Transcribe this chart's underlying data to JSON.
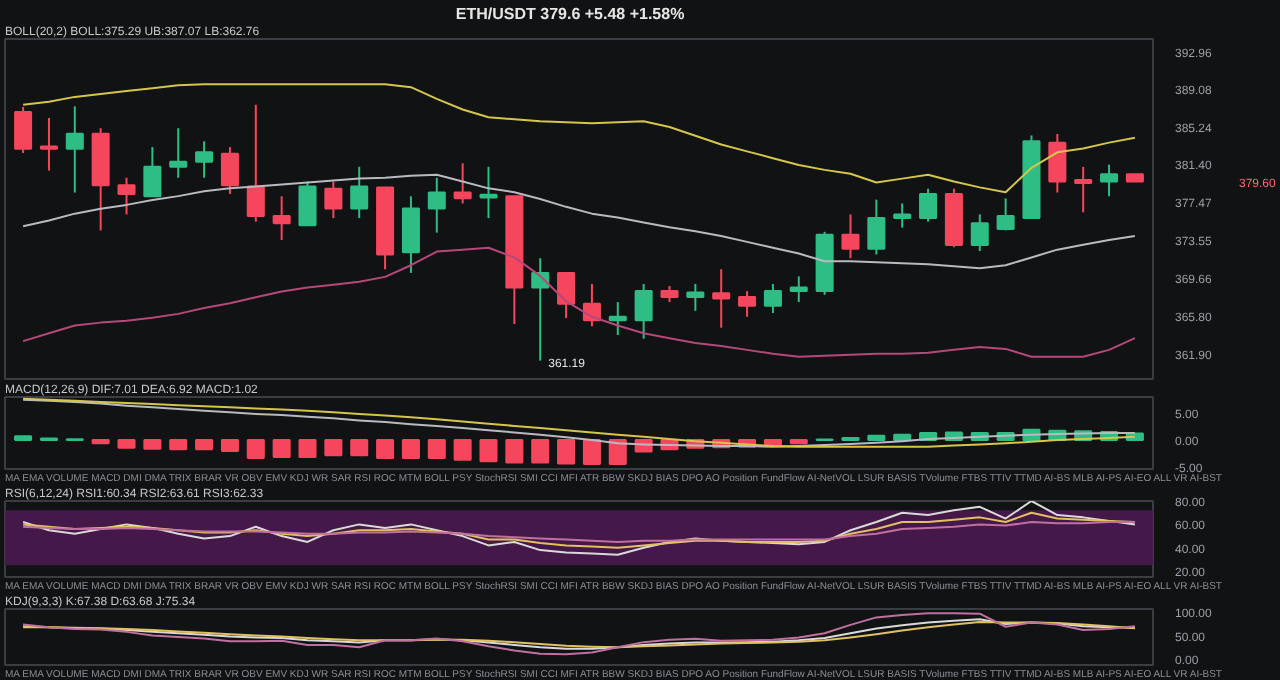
{
  "chart_data": [
    {
      "type": "candlestick",
      "title": "ETH/USDT",
      "subtitle": "BOLL(20,2) BOLL:375.29 UB:387.07 LB:362.76",
      "categories": [
        null,
        null,
        null,
        null,
        null,
        null,
        null,
        null,
        null,
        null,
        null,
        null,
        null,
        null,
        null,
        null,
        null,
        null,
        null,
        null,
        null,
        null,
        null,
        null,
        null,
        null,
        null,
        null,
        null,
        null,
        null,
        null,
        null,
        null,
        null,
        null,
        null,
        null,
        null,
        null,
        null,
        null,
        null,
        null
      ],
      "ohlc": [
        [
          386.74,
          387.26,
          382.53,
          382.98
        ],
        [
          383.2,
          386.14,
          380.73,
          382.98
        ],
        [
          382.98,
          387.33,
          378.47,
          384.5
        ],
        [
          384.5,
          385.08,
          374.58,
          379.22
        ],
        [
          379.22,
          379.99,
          376.22,
          378.32
        ],
        [
          378.09,
          383.14,
          378.09,
          381.11
        ],
        [
          381.11,
          385.08,
          379.99,
          381.63
        ],
        [
          381.63,
          383.73,
          379.99,
          382.6
        ],
        [
          382.46,
          383.14,
          378.32,
          379.22
        ],
        [
          379.08,
          387.49,
          375.48,
          376.07
        ],
        [
          376.07,
          378.09,
          373.59,
          375.32
        ],
        [
          375.1,
          379.6,
          375.1,
          379.08
        ],
        [
          378.86,
          379.6,
          375.84,
          376.83
        ],
        [
          376.83,
          381.11,
          375.84,
          379.08
        ],
        [
          379.0,
          379.0,
          370.59,
          372.1
        ],
        [
          372.33,
          378.09,
          370.21,
          376.83
        ],
        [
          376.83,
          379.99,
          374.35,
          378.47
        ],
        [
          378.47,
          381.48,
          377.35,
          377.87
        ],
        [
          377.96,
          381.11,
          375.84,
          378.25
        ],
        [
          378.09,
          378.09,
          364.95,
          368.72
        ],
        [
          368.72,
          371.72,
          361.19,
          370.21
        ],
        [
          370.21,
          370.21,
          365.57,
          367.05
        ],
        [
          367.05,
          369.08,
          364.73,
          365.34
        ],
        [
          365.34,
          367.21,
          363.83,
          365.7
        ],
        [
          365.34,
          369.08,
          363.45,
          368.34
        ],
        [
          368.34,
          368.86,
          367.21,
          367.73
        ],
        [
          367.73,
          369.08,
          366.31,
          368.19
        ],
        [
          368.11,
          370.59,
          364.58,
          367.58
        ],
        [
          367.73,
          368.34,
          365.7,
          366.83
        ],
        [
          366.83,
          369.08,
          366.08,
          368.34
        ],
        [
          368.34,
          369.85,
          367.21,
          368.72
        ],
        [
          368.34,
          374.43,
          367.96,
          374.13
        ],
        [
          374.13,
          376.22,
          371.72,
          372.68
        ],
        [
          372.68,
          377.74,
          372.1,
          375.84
        ],
        [
          375.84,
          377.35,
          374.87,
          376.22
        ],
        [
          375.84,
          378.86,
          375.48,
          378.32
        ],
        [
          378.32,
          378.86,
          372.84,
          373.07
        ],
        [
          373.07,
          376.22,
          372.46,
          375.32
        ],
        [
          374.72,
          377.87,
          374.58,
          376.07
        ],
        [
          375.84,
          384.34,
          375.84,
          383.73
        ],
        [
          383.59,
          384.49,
          378.47,
          379.6
        ],
        [
          379.76,
          381.11,
          376.44,
          379.45
        ],
        [
          379.6,
          381.34,
          378.09,
          380.35
        ],
        [
          380.35,
          380.35,
          379.6,
          379.6
        ]
      ],
      "colors": [
        "#f6465d",
        "#f6465d",
        "#2ebd85",
        "#f6465d",
        "#f6465d",
        "#2ebd85",
        "#2ebd85",
        "#2ebd85",
        "#f6465d",
        "#f6465d",
        "#f6465d",
        "#2ebd85",
        "#f6465d",
        "#2ebd85",
        "#f6465d",
        "#2ebd85",
        "#2ebd85",
        "#f6465d",
        "#2ebd85",
        "#f6465d",
        "#2ebd85",
        "#f6465d",
        "#f6465d",
        "#2ebd85",
        "#2ebd85",
        "#f6465d",
        "#2ebd85",
        "#f6465d",
        "#f6465d",
        "#2ebd85",
        "#2ebd85",
        "#2ebd85",
        "#f6465d",
        "#2ebd85",
        "#2ebd85",
        "#2ebd85",
        "#f6465d",
        "#2ebd85",
        "#2ebd85",
        "#2ebd85",
        "#f6465d",
        "#f6465d",
        "#2ebd85",
        "#f6465d"
      ],
      "series": [
        {
          "type": "line",
          "color": "#d4c64a",
          "values": [
            387.5,
            387.8,
            388.3,
            388.6,
            388.9,
            389.2,
            389.5,
            389.6,
            389.6,
            389.6,
            389.6,
            389.6,
            389.6,
            389.6,
            389.6,
            389.3,
            388.1,
            387.0,
            386.2,
            386.0,
            385.8,
            385.7,
            385.6,
            385.7,
            385.8,
            385.2,
            384.3,
            383.4,
            382.7,
            382.0,
            381.3,
            380.8,
            380.4,
            379.5,
            379.9,
            380.3,
            379.6,
            379.0,
            378.5,
            381.0,
            382.6,
            383.0,
            383.6,
            384.1
          ]
        },
        {
          "type": "line",
          "color": "#b9b9c0",
          "values": [
            375.0,
            375.6,
            376.3,
            376.8,
            377.2,
            377.7,
            378.1,
            378.6,
            378.9,
            379.1,
            379.3,
            379.5,
            379.7,
            379.9,
            380.0,
            380.2,
            380.3,
            379.6,
            378.9,
            378.5,
            377.8,
            377.0,
            376.3,
            375.9,
            375.4,
            374.9,
            374.5,
            374.0,
            373.4,
            372.8,
            372.2,
            371.4,
            371.4,
            371.3,
            371.2,
            371.1,
            370.9,
            370.7,
            371.0,
            371.8,
            372.6,
            373.1,
            373.6,
            374.0
          ]
        },
        {
          "type": "line",
          "color": "#b5487a",
          "values": [
            363.2,
            364.0,
            364.8,
            365.1,
            365.3,
            365.6,
            366.0,
            366.6,
            367.1,
            367.7,
            368.3,
            368.7,
            369.0,
            369.3,
            369.8,
            371.0,
            372.4,
            372.6,
            372.8,
            371.8,
            369.9,
            367.3,
            365.7,
            364.8,
            364.0,
            363.5,
            363.0,
            362.7,
            362.3,
            361.9,
            361.6,
            361.7,
            361.8,
            361.9,
            361.9,
            362.0,
            362.3,
            362.6,
            362.4,
            361.6,
            361.6,
            361.6,
            362.3,
            363.5
          ]
        }
      ],
      "ylim": [
        359.1,
        394.25
      ],
      "yticks": [
        392.96,
        389.08,
        385.24,
        {
          "value": 381.4,
          "label": "381.40"
        },
        377.47,
        373.55,
        369.66,
        {
          "value": 365.8,
          "label": "365.80"
        },
        {
          "value": 361.9,
          "label": "361.90"
        }
      ],
      "tick_labels": "y",
      "annotations": [
        "379.6",
        "+5.48",
        "+1.58%",
        "361.19",
        "379.60"
      ]
    },
    {
      "type": "bar",
      "subtitle": "MACD(12,26,9) DIF:7.01 DEA:6.92 MACD:1.02",
      "categories": [
        null,
        null,
        null,
        null,
        null,
        null,
        null,
        null,
        null,
        null,
        null,
        null,
        null,
        null,
        null,
        null,
        null,
        null,
        null,
        null,
        null,
        null,
        null,
        null,
        null,
        null,
        null,
        null,
        null,
        null,
        null,
        null,
        null,
        null,
        null,
        null,
        null,
        null,
        null,
        null,
        null,
        null,
        null,
        null
      ],
      "series": [
        {
          "type": "bar",
          "colors": [
            "#2ebd85",
            "#2ebd85",
            "#2ebd85",
            "#f6465d",
            "#f6465d",
            "#f6465d",
            "#f6465d",
            "#f6465d",
            "#f6465d",
            "#f6465d",
            "#f6465d",
            "#f6465d",
            "#f6465d",
            "#f6465d",
            "#f6465d",
            "#f6465d",
            "#f6465d",
            "#f6465d",
            "#f6465d",
            "#f6465d",
            "#f6465d",
            "#f6465d",
            "#f6465d",
            "#f6465d",
            "#f6465d",
            "#f6465d",
            "#f6465d",
            "#f6465d",
            "#f6465d",
            "#f6465d",
            "#f6465d",
            "#2ebd85",
            "#2ebd85",
            "#2ebd85",
            "#2ebd85",
            "#2ebd85",
            "#2ebd85",
            "#2ebd85",
            "#2ebd85",
            "#2ebd85",
            "#2ebd85",
            "#2ebd85",
            "#2ebd85",
            "#2ebd85"
          ],
          "values": [
            0.7,
            0.3,
            0.15,
            -0.6,
            -1.4,
            -1.6,
            -1.7,
            -1.7,
            -2.0,
            -3.3,
            -3.1,
            -3.1,
            -2.8,
            -2.8,
            -3.3,
            -3.3,
            -3.3,
            -3.6,
            -3.9,
            -4.1,
            -4.1,
            -4.3,
            -4.4,
            -4.4,
            -2.1,
            -1.7,
            -1.4,
            -1.3,
            -1.2,
            -1.0,
            -0.6,
            0.1,
            0.4,
            0.8,
            1.0,
            1.3,
            1.4,
            1.3,
            1.3,
            1.9,
            1.7,
            1.6,
            1.5,
            1.2
          ]
        },
        {
          "type": "line",
          "color": "#b9b9c0",
          "values": [
            7.4,
            7.2,
            7.0,
            6.7,
            6.3,
            6.0,
            5.7,
            5.4,
            5.1,
            4.8,
            4.6,
            4.3,
            4.0,
            3.6,
            3.3,
            2.9,
            2.6,
            2.2,
            1.8,
            1.4,
            1.0,
            0.5,
            0.0,
            -0.6,
            -0.8,
            -0.9,
            -1.0,
            -1.1,
            -1.1,
            -1.2,
            -1.1,
            -0.9,
            -0.7,
            -0.5,
            -0.2,
            0.2,
            0.4,
            0.6,
            0.8,
            1.0,
            1.1,
            1.2,
            1.3,
            1.3
          ]
        },
        {
          "type": "line",
          "color": "#d4c64a",
          "values": [
            7.6,
            7.4,
            7.2,
            7.0,
            6.8,
            6.6,
            6.4,
            6.2,
            6.0,
            5.8,
            5.6,
            5.4,
            5.1,
            4.8,
            4.5,
            4.2,
            3.8,
            3.4,
            3.0,
            2.6,
            2.2,
            1.8,
            1.4,
            1.0,
            0.6,
            0.2,
            -0.2,
            -0.5,
            -0.8,
            -1.1,
            -1.2,
            -1.2,
            -1.2,
            -1.2,
            -1.2,
            -1.2,
            -1.0,
            -0.8,
            -0.6,
            -0.3,
            0.0,
            0.2,
            0.4,
            0.6
          ]
        }
      ],
      "ylim": [
        -5.3,
        7.9
      ],
      "yticks": [
        {
          "value": 5,
          "label": "5.00"
        },
        {
          "value": 0,
          "label": "0.00"
        },
        {
          "value": -5,
          "label": "-5.00"
        }
      ],
      "tick_labels": "y",
      "annotations": [
        "MA EMA VOLUME MACD DMI DMA TRIX BRAR VR OBV EMV KDJ WR SAR RSI ROC MTM BOLL PSY StochRSI SMI CCI MFI ATR BBW SKDJ BIAS DPO AO Position FundFlow AI-NetVOL LSUR BASIS TVolume FTBS TTIV TTMD AI-BS MLB AI-PS AI-EO ALL VR AI-BST"
      ]
    },
    {
      "type": "line",
      "subtitle": "RSI(6,12,24) RSI1:60.34 RSI2:63.61 RSI3:62.33",
      "categories": [
        null,
        null,
        null,
        null,
        null,
        null,
        null,
        null,
        null,
        null,
        null,
        null,
        null,
        null,
        null,
        null,
        null,
        null,
        null,
        null,
        null,
        null,
        null,
        null,
        null,
        null,
        null,
        null,
        null,
        null,
        null,
        null,
        null,
        null,
        null,
        null,
        null,
        null,
        null,
        null,
        null,
        null,
        null,
        null
      ],
      "series": [
        {
          "color": "#d9d9d9",
          "values": [
            62,
            55,
            52,
            56,
            60,
            57,
            52,
            48,
            50,
            58,
            50,
            45,
            55,
            60,
            57,
            60,
            55,
            50,
            42,
            45,
            38,
            36,
            35,
            34,
            40,
            45,
            48,
            46,
            45,
            44,
            43,
            45,
            55,
            62,
            70,
            68,
            72,
            75,
            65,
            80,
            68,
            66,
            63,
            60
          ]
        },
        {
          "color": "#e0c060",
          "values": [
            60,
            58,
            56,
            57,
            58,
            57,
            55,
            53,
            53,
            55,
            52,
            50,
            52,
            55,
            55,
            56,
            54,
            52,
            47,
            47,
            44,
            42,
            41,
            40,
            42,
            44,
            46,
            46,
            45,
            45,
            45,
            46,
            52,
            56,
            62,
            62,
            64,
            66,
            62,
            70,
            65,
            64,
            63,
            62
          ]
        },
        {
          "color": "#c070a0",
          "values": [
            58,
            57,
            56,
            56,
            57,
            56,
            55,
            54,
            54,
            54,
            53,
            52,
            52,
            53,
            53,
            54,
            53,
            52,
            50,
            49,
            48,
            47,
            46,
            45,
            46,
            46,
            47,
            47,
            47,
            47,
            47,
            47,
            50,
            52,
            56,
            57,
            58,
            60,
            59,
            62,
            61,
            61,
            62,
            62
          ]
        }
      ],
      "bands": [
        {
          "axis": "y",
          "from": 25,
          "to": 72,
          "color": "#4a1a4f"
        }
      ],
      "ylim": [
        15,
        80
      ],
      "yticks": [
        {
          "value": 20,
          "label": "20.00"
        },
        {
          "value": 40,
          "label": "40.00"
        },
        {
          "value": 60,
          "label": "60.00"
        },
        {
          "value": 80,
          "label": "80.00"
        }
      ],
      "tick_labels": "y",
      "annotations": [
        "MA EMA VOLUME MACD DMI DMA TRIX BRAR VR OBV EMV KDJ WR SAR RSI ROC MTM BOLL PSY StochRSI SMI CCI MFI ATR BBW SKDJ BIAS DPO AO Position FundFlow AI-NetVOL LSUR BASIS TVolume FTBS TTIV TTMD AI-BS MLB AI-PS AI-EO ALL VR AI-BST"
      ]
    },
    {
      "type": "line",
      "subtitle": "KDJ(9,3,3) K:67.38 D:63.68 J:75.34",
      "categories": [
        null,
        null,
        null,
        null,
        null,
        null,
        null,
        null,
        null,
        null,
        null,
        null,
        null,
        null,
        null,
        null,
        null,
        null,
        null,
        null,
        null,
        null,
        null,
        null,
        null,
        null,
        null,
        null,
        null,
        null,
        null,
        null,
        null,
        null,
        null,
        null,
        null,
        null,
        null,
        null,
        null,
        null,
        null,
        null
      ],
      "series": [
        {
          "color": "#d9d9d9",
          "values": [
            70,
            68,
            66,
            65,
            62,
            58,
            55,
            52,
            48,
            46,
            45,
            40,
            38,
            35,
            40,
            40,
            42,
            40,
            35,
            30,
            25,
            22,
            22,
            25,
            30,
            33,
            35,
            35,
            36,
            37,
            40,
            45,
            55,
            65,
            72,
            78,
            82,
            85,
            75,
            78,
            76,
            70,
            68,
            67
          ]
        },
        {
          "color": "#e0c060",
          "values": [
            68,
            68,
            67,
            66,
            64,
            62,
            59,
            56,
            53,
            50,
            48,
            45,
            42,
            40,
            40,
            40,
            41,
            41,
            39,
            36,
            32,
            28,
            26,
            25,
            27,
            29,
            31,
            33,
            34,
            35,
            37,
            40,
            46,
            53,
            61,
            68,
            74,
            79,
            78,
            78,
            77,
            74,
            70,
            66
          ]
        },
        {
          "color": "#c070a0",
          "values": [
            74,
            68,
            64,
            63,
            58,
            50,
            47,
            44,
            38,
            38,
            39,
            30,
            30,
            25,
            40,
            40,
            44,
            38,
            27,
            18,
            11,
            10,
            14,
            25,
            36,
            41,
            43,
            39,
            40,
            41,
            46,
            55,
            73,
            89,
            94,
            98,
            98,
            97,
            69,
            78,
            74,
            62,
            64,
            70
          ]
        }
      ],
      "ylim": [
        -13,
        107
      ],
      "yticks": [
        {
          "value": 0,
          "label": "0.00"
        },
        {
          "value": 50,
          "label": "50.00"
        },
        {
          "value": 100,
          "label": "100.00"
        }
      ],
      "tick_labels": "y",
      "annotations": [
        "MA EMA VOLUME MACD DMI DMA TRIX BRAR VR OBV EMV KDJ WR SAR RSI ROC MTM BOLL PSY StochRSI SMI CCI MFI ATR BBW SKDJ BIAS DPO AO Position FundFlow AI-NetVOL LSUR BASIS TVolume FTBS TTIV TTMD AI-BS MLB AI-PS AI-EO ALL VR AI-BST"
      ]
    }
  ]
}
